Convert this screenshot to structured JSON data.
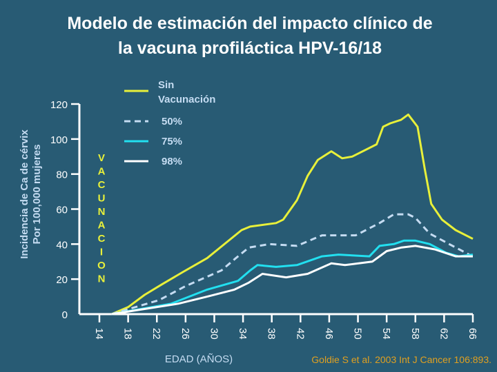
{
  "chart_data": {
    "type": "line",
    "title": "Modelo de estimación del impacto clínico de la vacuna profiláctica HPV-16/18",
    "title_lines": [
      "Modelo de estimación del impacto clínico de",
      "la vacuna profiláctica HPV-16/18"
    ],
    "xlabel": "EDAD (AÑOS)",
    "ylabel_lines": [
      "Incidencia de Ca de cérvix",
      "Por 100,000 mujeres"
    ],
    "vertical_annotation": [
      "V",
      "A",
      "C",
      "U",
      "N",
      "A",
      "C",
      "I",
      "O",
      "N"
    ],
    "source": "Goldie S et al. 2003 Int J Cancer 106:893.",
    "xlim": [
      14,
      66
    ],
    "ylim": [
      0,
      120
    ],
    "xticks": [
      "14",
      "18",
      "22",
      "26",
      "30",
      "34",
      "38",
      "42",
      "46",
      "50",
      "54",
      "58",
      "62",
      "66"
    ],
    "yticks": [
      "0",
      "20",
      "40",
      "60",
      "80",
      "100",
      "120"
    ],
    "grid": false,
    "legend_position": "top",
    "series": [
      {
        "name": "Sin Vacunación",
        "legend_lines": [
          "Sin",
          "Vacunación"
        ],
        "color": "#e8f03a",
        "style": "solid",
        "x": [
          15.7,
          18,
          20.3,
          22.7,
          25.6,
          29,
          33.8,
          35,
          38.6,
          39.6,
          41.5,
          43,
          44.4,
          46.3,
          47.8,
          49.2,
          52.6,
          53.5,
          54.5,
          56,
          57,
          58.3,
          59.3,
          60.2,
          61.7,
          63.6,
          66
        ],
        "y": [
          0,
          4,
          11,
          17,
          24,
          32,
          48,
          50,
          52,
          54,
          65,
          79,
          88,
          93,
          89,
          90,
          97,
          107,
          109,
          111,
          114,
          107,
          83,
          63,
          54,
          48,
          43
        ]
      },
      {
        "name": "50%",
        "legend_lines": [
          "50%"
        ],
        "color": "#c5dcf2",
        "style": "dashed",
        "x": [
          15.7,
          22.3,
          26,
          31,
          33,
          34.8,
          37.7,
          41.5,
          45,
          49.7,
          53,
          55,
          57,
          58,
          60,
          62.7,
          65.5
        ],
        "y": [
          0,
          8,
          16,
          25,
          32,
          38,
          40,
          39,
          45,
          45,
          52,
          57,
          57,
          55,
          46,
          40,
          34
        ]
      },
      {
        "name": "75%",
        "legend_lines": [
          "75%"
        ],
        "color": "#22e0f0",
        "style": "solid",
        "x": [
          15.7,
          24,
          29,
          33.3,
          35,
          36,
          38.6,
          41.5,
          45,
          47.3,
          51.6,
          53,
          55,
          56.4,
          58,
          60,
          62.3,
          64,
          66
        ],
        "y": [
          0,
          6,
          14,
          19,
          25,
          28,
          27,
          28,
          33,
          34,
          33,
          39,
          40,
          42,
          42,
          40,
          35,
          33,
          34
        ]
      },
      {
        "name": "98%",
        "legend_lines": [
          "98%"
        ],
        "color": "#ffffff",
        "style": "solid",
        "x": [
          15.7,
          25,
          29,
          32.8,
          34.8,
          36.7,
          40,
          43,
          46.3,
          48.2,
          52,
          54,
          56,
          58,
          60.7,
          63.6,
          66
        ],
        "y": [
          0,
          6,
          10,
          14,
          18,
          23,
          21,
          23,
          29,
          28,
          30,
          36,
          38,
          39,
          37,
          33,
          33
        ]
      }
    ]
  }
}
